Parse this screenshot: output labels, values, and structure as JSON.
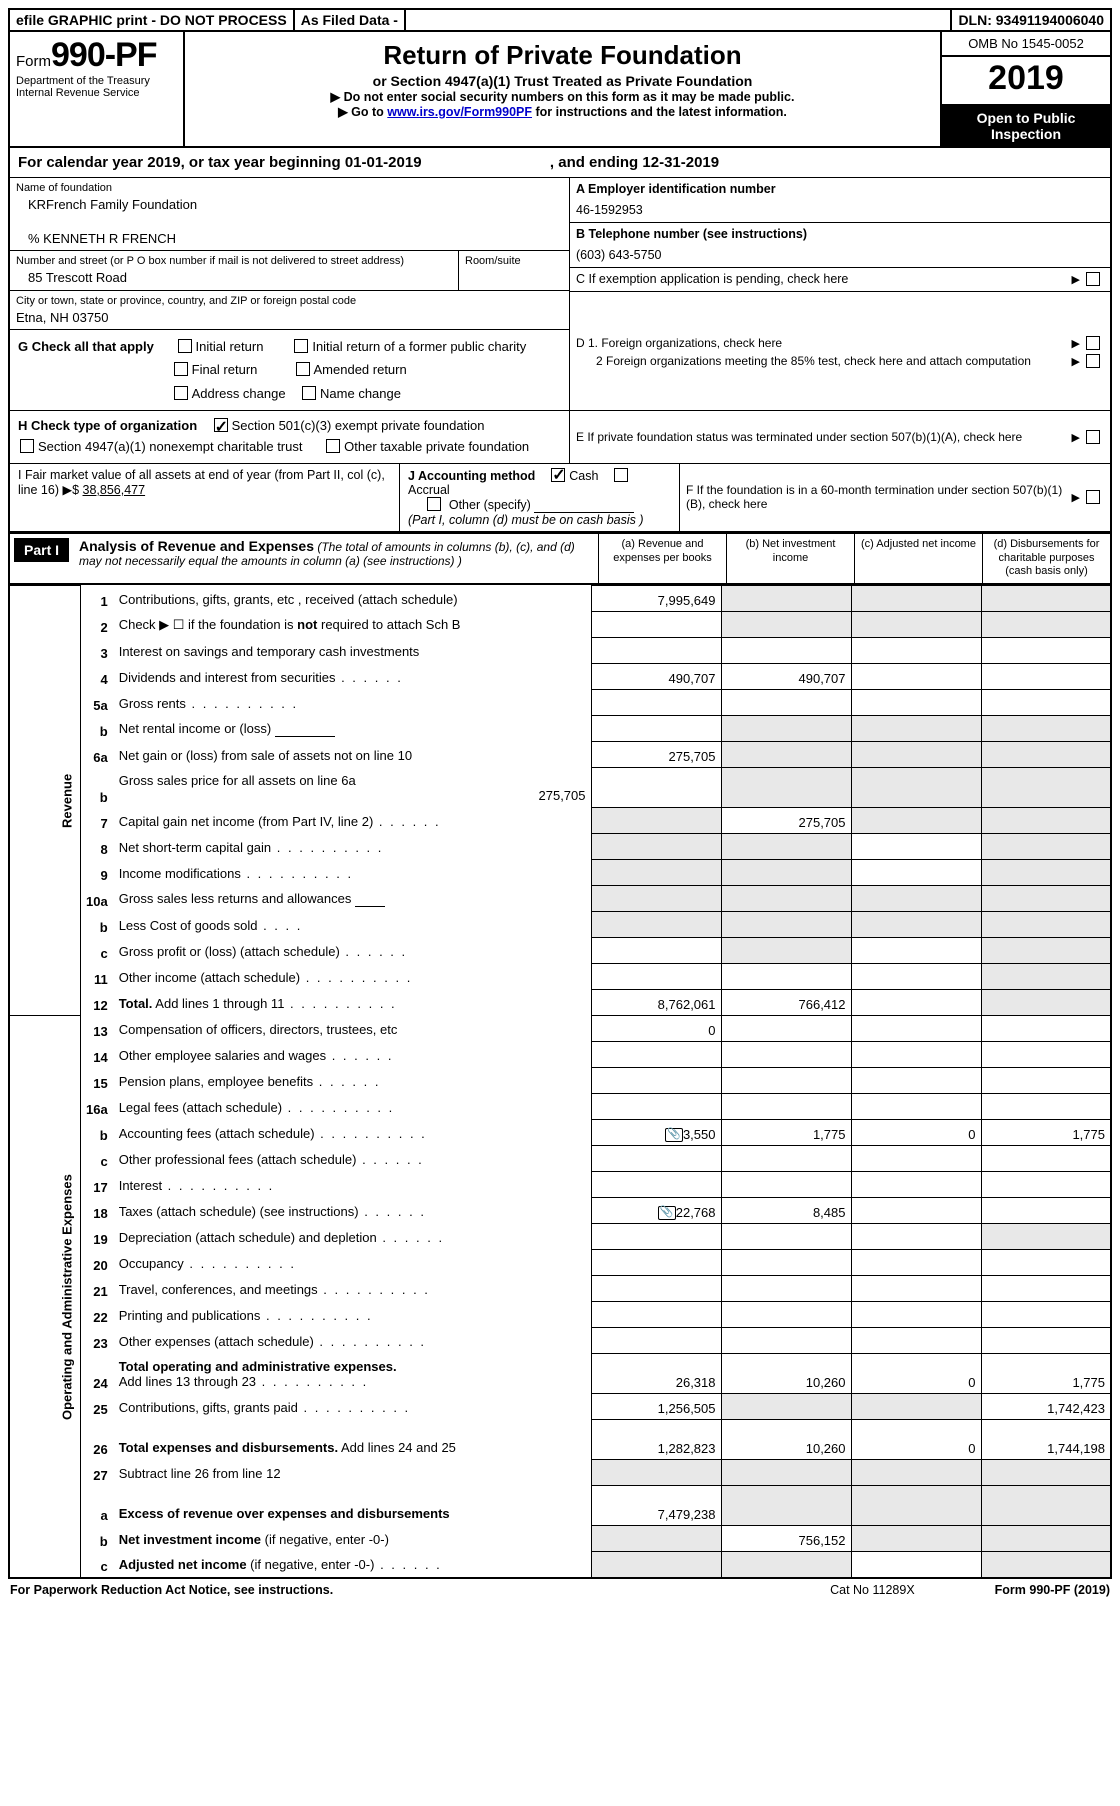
{
  "top_bar": {
    "efile": "efile GRAPHIC print - DO NOT PROCESS",
    "asfiled": "As Filed Data -",
    "dln_label": "DLN:",
    "dln": "93491194006040"
  },
  "header": {
    "form_word": "Form",
    "form_num": "990-PF",
    "dept": "Department of the Treasury",
    "irs": "Internal Revenue Service",
    "title": "Return of Private Foundation",
    "subtitle": "or Section 4947(a)(1) Trust Treated as Private Foundation",
    "note1": "▶ Do not enter social security numbers on this form as it may be made public.",
    "note2_pre": "▶ Go to ",
    "note2_link": "www.irs.gov/Form990PF",
    "note2_post": " for instructions and the latest information.",
    "omb": "OMB No 1545-0052",
    "year": "2019",
    "inspection": "Open to Public Inspection"
  },
  "cal": {
    "text_a": "For calendar year 2019, or tax year beginning ",
    "begin": "01-01-2019",
    "text_b": ", and ending ",
    "end": "12-31-2019"
  },
  "name": {
    "label": "Name of foundation",
    "value": "KRFrench Family Foundation",
    "care": "% KENNETH R FRENCH"
  },
  "addr": {
    "label": "Number and street (or P O  box number if mail is not delivered to street address)",
    "value": "85 Trescott Road",
    "room_label": "Room/suite"
  },
  "city": {
    "label": "City or town, state or province, country, and ZIP or foreign postal code",
    "value": "Etna, NH  03750"
  },
  "A": {
    "label": "A Employer identification number",
    "value": "46-1592953"
  },
  "B": {
    "label": "B Telephone number (see instructions)",
    "value": "(603) 643-5750"
  },
  "C": {
    "label": "C  If exemption application is pending, check here"
  },
  "D": {
    "d1": "D 1.  Foreign organizations, check here",
    "d2": "2  Foreign organizations meeting the 85% test, check here and attach computation"
  },
  "E": {
    "label": "E  If private foundation status was terminated under section 507(b)(1)(A), check here"
  },
  "F": {
    "label": "F  If the foundation is in a 60-month termination under section 507(b)(1)(B), check here"
  },
  "G": {
    "label": "G Check all that apply",
    "opts": [
      "Initial return",
      "Initial return of a former public charity",
      "Final return",
      "Amended return",
      "Address change",
      "Name change"
    ]
  },
  "H": {
    "label": "H Check type of organization",
    "a": "Section 501(c)(3) exempt private foundation",
    "b": "Section 4947(a)(1) nonexempt charitable trust",
    "c": "Other taxable private foundation"
  },
  "I": {
    "label": "I Fair market value of all assets at end of year (from Part II, col  (c), line 16) ▶$  ",
    "value": "38,856,477"
  },
  "J": {
    "label": "J Accounting method",
    "cash": "Cash",
    "accrual": "Accrual",
    "other": "Other (specify)",
    "note": "(Part I, column (d) must be on cash basis )"
  },
  "part1": {
    "tag": "Part I",
    "title": "Analysis of Revenue and Expenses",
    "paren": " (The total of amounts in columns (b), (c), and (d) may not necessarily equal the amounts in column (a) (see instructions) )",
    "col_a": "(a)    Revenue and expenses per books",
    "col_b": "(b)   Net investment income",
    "col_c": "(c)   Adjusted net income",
    "col_d": "(d)   Disbursements for charitable purposes (cash basis only)"
  },
  "side": {
    "rev": "Revenue",
    "exp": "Operating and Administrative Expenses"
  },
  "rows": [
    {
      "n": "1",
      "d": "Contributions, gifts, grants, etc , received (attach schedule)",
      "a": "7,995,649",
      "ag": "",
      "bg": "g",
      "cg": "g",
      "dg": "g"
    },
    {
      "n": "2",
      "d": "Check ▶ ☐ if the foundation is <b>not</b> required to attach Sch  B",
      "a": "",
      "bg": "g",
      "cg": "g",
      "dg": "g"
    },
    {
      "n": "3",
      "d": "Interest on savings and temporary cash investments",
      "a": ""
    },
    {
      "n": "4",
      "d": "Dividends and interest from securities",
      "dots": "m",
      "a": "490,707",
      "b": "490,707"
    },
    {
      "n": "5a",
      "d": "Gross rents",
      "dots": "l",
      "a": ""
    },
    {
      "n": "b",
      "d": "Net rental income or (loss) <span class='inline-ul'>&nbsp;</span>",
      "a": "",
      "bg": "g",
      "cg": "g",
      "dg": "g"
    },
    {
      "n": "6a",
      "d": "Net gain or (loss) from sale of assets not on line 10",
      "a": "275,705",
      "bg": "g",
      "cg": "g",
      "dg": "g"
    },
    {
      "n": "b",
      "d": "Gross sales price for all assets on line 6a<div style='text-align:right'>275,705</div>",
      "a": "",
      "bg": "g",
      "cg": "g",
      "dg": "g",
      "tall": true
    },
    {
      "n": "7",
      "d": "Capital gain net income (from Part IV, line 2)",
      "dots": "m",
      "a": "",
      "ag": "g",
      "b": "275,705",
      "cg": "g",
      "dg": "g"
    },
    {
      "n": "8",
      "d": "Net short-term capital gain",
      "dots": "l",
      "a": "",
      "ag": "g",
      "bg": "g",
      "dg": "g"
    },
    {
      "n": "9",
      "d": "Income modifications",
      "dots": "l",
      "a": "",
      "ag": "g",
      "bg": "g",
      "dg": "g"
    },
    {
      "n": "10a",
      "d": "Gross sales less returns and allowances <span class='inline-ul' style='min-width:30px'>&nbsp;</span>",
      "a": "",
      "bg": "g",
      "cg": "g",
      "dg": "g",
      "ag": "g"
    },
    {
      "n": "b",
      "d": "Less  Cost of goods sold",
      "dots": "s",
      "a": "",
      "bg": "g",
      "cg": "g",
      "dg": "g",
      "ag": "g"
    },
    {
      "n": "c",
      "d": "Gross profit or (loss) (attach schedule)",
      "dots": "m",
      "a": "",
      "bg": "g",
      "dg": "g"
    },
    {
      "n": "11",
      "d": "Other income (attach schedule)",
      "dots": "l",
      "a": "",
      "dg": "g"
    },
    {
      "n": "12",
      "d": "<b>Total.</b> Add lines 1 through 11",
      "dots": "l",
      "a": "8,762,061",
      "b": "766,412",
      "dg": "g"
    }
  ],
  "rows2": [
    {
      "n": "13",
      "d": "Compensation of officers, directors, trustees, etc",
      "a": "0"
    },
    {
      "n": "14",
      "d": "Other employee salaries and wages",
      "dots": "m",
      "a": ""
    },
    {
      "n": "15",
      "d": "Pension plans, employee benefits",
      "dots": "m",
      "a": ""
    },
    {
      "n": "16a",
      "d": "Legal fees (attach schedule)",
      "dots": "l",
      "a": ""
    },
    {
      "n": "b",
      "d": "Accounting fees (attach schedule)",
      "dots": "l",
      "clip": true,
      "a": "3,550",
      "b": "1,775",
      "c": "0",
      "dd": "1,775"
    },
    {
      "n": "c",
      "d": "Other professional fees (attach schedule)",
      "dots": "m",
      "a": ""
    },
    {
      "n": "17",
      "d": "Interest",
      "dots": "l",
      "a": ""
    },
    {
      "n": "18",
      "d": "Taxes (attach schedule) (see instructions)",
      "dots": "m",
      "clip": true,
      "a": "22,768",
      "b": "8,485"
    },
    {
      "n": "19",
      "d": "Depreciation (attach schedule) and depletion",
      "dots": "m",
      "a": "",
      "dg": "g"
    },
    {
      "n": "20",
      "d": "Occupancy",
      "dots": "l",
      "a": ""
    },
    {
      "n": "21",
      "d": "Travel, conferences, and meetings",
      "dots": "l",
      "a": ""
    },
    {
      "n": "22",
      "d": "Printing and publications",
      "dots": "l",
      "a": ""
    },
    {
      "n": "23",
      "d": "Other expenses (attach schedule)",
      "dots": "l",
      "a": ""
    },
    {
      "n": "24",
      "d": "<b>Total operating and administrative expenses.</b><br>Add lines 13 through 23",
      "dots": "l",
      "a": "26,318",
      "b": "10,260",
      "c": "0",
      "dd": "1,775",
      "tall": true
    },
    {
      "n": "25",
      "d": "Contributions, gifts, grants paid",
      "dots": "l",
      "a": "1,256,505",
      "bg": "g",
      "cg": "g",
      "dd": "1,742,423"
    },
    {
      "n": "26",
      "d": "<b>Total expenses and disbursements.</b> Add lines 24 and 25",
      "a": "1,282,823",
      "b": "10,260",
      "c": "0",
      "dd": "1,744,198",
      "tall": true
    },
    {
      "n": "27",
      "d": "Subtract line 26 from line 12",
      "a": "",
      "bg": "g",
      "cg": "g",
      "dg": "g",
      "ag": "g",
      "noborder": true
    },
    {
      "n": "a",
      "d": "<b>Excess of revenue over expenses and disbursements</b>",
      "a": "7,479,238",
      "bg": "g",
      "cg": "g",
      "dg": "g",
      "tall": true
    },
    {
      "n": "b",
      "d": "<b>Net investment income</b> (if negative, enter -0-)",
      "a": "",
      "ag": "g",
      "b": "756,152",
      "cg": "g",
      "dg": "g"
    },
    {
      "n": "c",
      "d": "<b>Adjusted net income</b> (if negative, enter -0-)",
      "dots": "m",
      "a": "",
      "ag": "g",
      "bg": "g",
      "dg": "g"
    }
  ],
  "footer": {
    "left": "For Paperwork Reduction Act Notice, see instructions.",
    "mid": "Cat  No  11289X",
    "right": "Form 990-PF (2019)"
  }
}
